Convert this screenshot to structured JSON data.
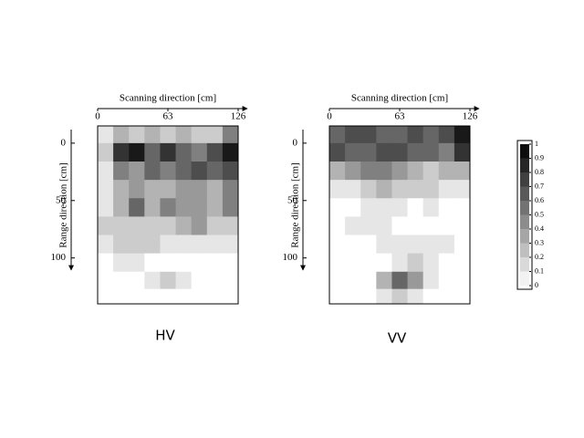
{
  "chart_data": [
    {
      "type": "heatmap",
      "title": "HV",
      "xlabel": "Scanning direction [cm]",
      "ylabel": "Range direction [cm]",
      "xlim": [
        0,
        126
      ],
      "xticks": [
        0,
        63,
        126
      ],
      "ylim": [
        -15,
        140
      ],
      "yticks": [
        0,
        50,
        100
      ],
      "x": [
        7,
        21,
        35,
        49,
        63,
        77,
        91,
        105,
        119
      ],
      "y": [
        -8,
        8,
        24,
        40,
        56,
        72,
        88,
        104,
        120,
        134
      ],
      "z": [
        [
          0.1,
          0.3,
          0.2,
          0.3,
          0.2,
          0.3,
          0.2,
          0.2,
          0.5
        ],
        [
          0.2,
          0.8,
          0.9,
          0.6,
          0.8,
          0.6,
          0.5,
          0.7,
          0.9
        ],
        [
          0.1,
          0.5,
          0.4,
          0.6,
          0.5,
          0.6,
          0.7,
          0.6,
          0.7
        ],
        [
          0.1,
          0.3,
          0.4,
          0.3,
          0.3,
          0.4,
          0.4,
          0.3,
          0.5
        ],
        [
          0.1,
          0.3,
          0.6,
          0.3,
          0.5,
          0.4,
          0.4,
          0.3,
          0.5
        ],
        [
          0.2,
          0.2,
          0.2,
          0.2,
          0.2,
          0.3,
          0.4,
          0.2,
          0.2
        ],
        [
          0.1,
          0.2,
          0.2,
          0.2,
          0.1,
          0.1,
          0.1,
          0.1,
          0.1
        ],
        [
          0,
          0.1,
          0.1,
          0,
          0,
          0,
          0,
          0,
          0
        ],
        [
          0,
          0,
          0,
          0.1,
          0.2,
          0.1,
          0,
          0,
          0
        ],
        [
          0,
          0,
          0,
          0,
          0,
          0,
          0,
          0,
          0
        ]
      ]
    },
    {
      "type": "heatmap",
      "title": "VV",
      "xlabel": "Scanning direction [cm]",
      "ylabel": "Range direction [cm]",
      "xlim": [
        0,
        126
      ],
      "xticks": [
        0,
        63,
        126
      ],
      "ylim": [
        -15,
        140
      ],
      "yticks": [
        0,
        50,
        100
      ],
      "x": [
        7,
        21,
        35,
        49,
        63,
        77,
        91,
        105,
        119
      ],
      "y": [
        -8,
        8,
        24,
        40,
        56,
        72,
        88,
        104,
        120,
        134
      ],
      "z": [
        [
          0.6,
          0.7,
          0.7,
          0.6,
          0.6,
          0.7,
          0.6,
          0.7,
          0.9
        ],
        [
          0.7,
          0.6,
          0.6,
          0.7,
          0.7,
          0.6,
          0.6,
          0.5,
          0.8
        ],
        [
          0.3,
          0.4,
          0.5,
          0.5,
          0.4,
          0.3,
          0.2,
          0.3,
          0.3
        ],
        [
          0.1,
          0.1,
          0.2,
          0.3,
          0.2,
          0.2,
          0.2,
          0.1,
          0.1
        ],
        [
          0,
          0,
          0.1,
          0.1,
          0.1,
          0,
          0.1,
          0,
          0
        ],
        [
          0,
          0.1,
          0.1,
          0.1,
          0,
          0,
          0,
          0,
          0
        ],
        [
          0,
          0,
          0,
          0.1,
          0.1,
          0.1,
          0.1,
          0.1,
          0
        ],
        [
          0,
          0,
          0,
          0,
          0.1,
          0.2,
          0.1,
          0,
          0
        ],
        [
          0,
          0,
          0,
          0.3,
          0.6,
          0.4,
          0.1,
          0,
          0
        ],
        [
          0,
          0,
          0,
          0.1,
          0.2,
          0.1,
          0,
          0,
          0
        ]
      ]
    }
  ],
  "colorbar": {
    "lim": [
      0,
      1
    ],
    "ticks": [
      0,
      0.1,
      0.2,
      0.3,
      0.4,
      0.5,
      0.6,
      0.7,
      0.8,
      0.9,
      1
    ]
  }
}
